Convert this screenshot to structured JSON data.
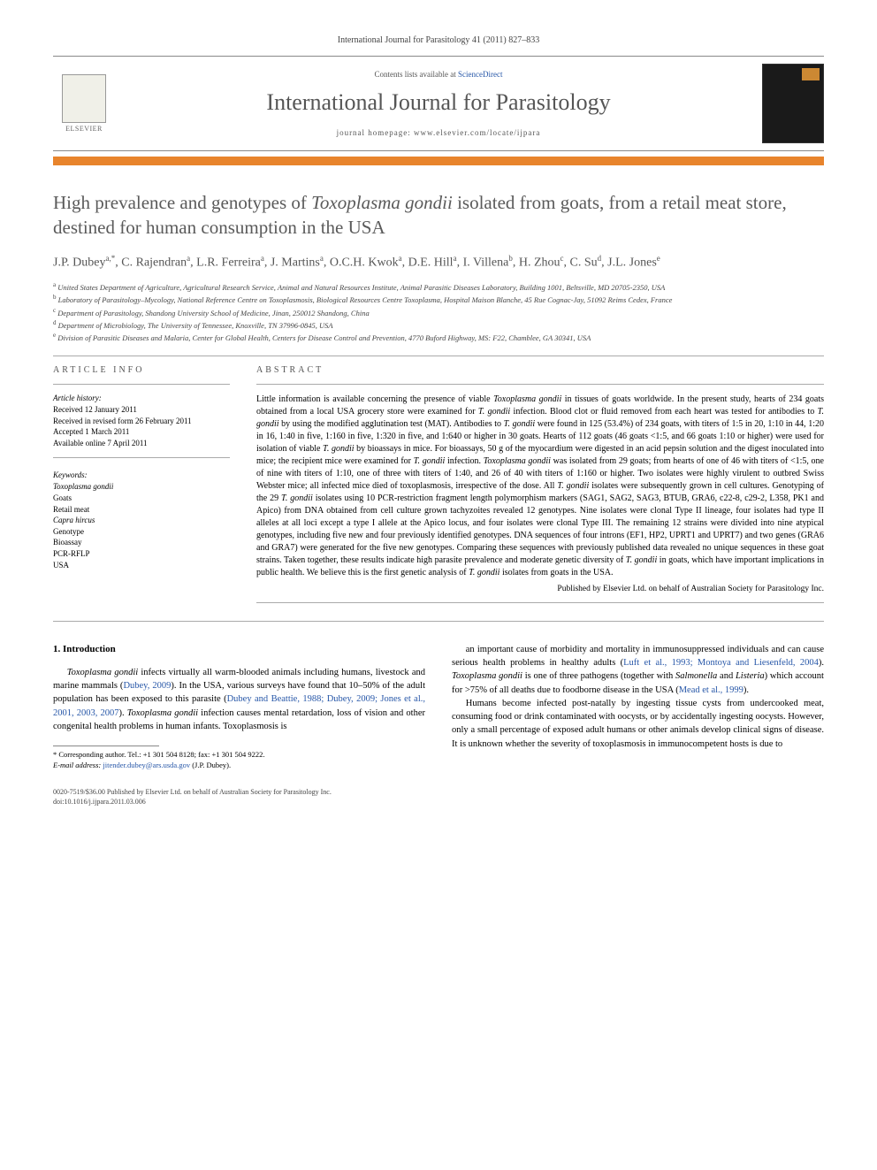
{
  "journal_ref": "International Journal for Parasitology 41 (2011) 827–833",
  "header": {
    "contents_prefix": "Contents lists available at ",
    "contents_link": "ScienceDirect",
    "journal_name": "International Journal for Parasitology",
    "homepage_prefix": "journal homepage: ",
    "homepage_url": "www.elsevier.com/locate/ijpara",
    "elsevier_label": "ELSEVIER"
  },
  "title_parts": {
    "p1": "High prevalence and genotypes of ",
    "ital": "Toxoplasma gondii",
    "p2": " isolated from goats, from a retail meat store, destined for human consumption in the USA"
  },
  "authors_html": "J.P. Dubey<sup>a,*</sup>, C. Rajendran<sup>a</sup>, L.R. Ferreira<sup>a</sup>, J. Martins<sup>a</sup>, O.C.H. Kwok<sup>a</sup>, D.E. Hill<sup>a</sup>, I. Villena<sup>b</sup>, H. Zhou<sup>c</sup>, C. Su<sup>d</sup>, J.L. Jones<sup>e</sup>",
  "affiliations": [
    "<sup>a</sup> United States Department of Agriculture, Agricultural Research Service, Animal and Natural Resources Institute, Animal Parasitic Diseases Laboratory, Building 1001, Beltsville, MD 20705-2350, USA",
    "<sup>b</sup> Laboratory of Parasitology–Mycology, National Reference Centre on Toxoplasmosis, Biological Resources Centre Toxoplasma, Hospital Maison Blanche, 45 Rue Cognac-Jay, 51092 Reims Cedex, France",
    "<sup>c</sup> Department of Parasitology, Shandong University School of Medicine, Jinan, 250012 Shandong, China",
    "<sup>d</sup> Department of Microbiology, The University of Tennessee, Knoxville, TN 37996-0845, USA",
    "<sup>e</sup> Division of Parasitic Diseases and Malaria, Center for Global Health, Centers for Disease Control and Prevention, 4770 Buford Highway, MS: F22, Chamblee, GA 30341, USA"
  ],
  "article_info": {
    "head": "ARTICLE INFO",
    "history_label": "Article history:",
    "history": [
      "Received 12 January 2011",
      "Received in revised form 26 February 2011",
      "Accepted 1 March 2011",
      "Available online 7 April 2011"
    ],
    "keywords_label": "Keywords:",
    "keywords": [
      {
        "text": "Toxoplasma gondii",
        "ital": true
      },
      {
        "text": "Goats",
        "ital": false
      },
      {
        "text": "Retail meat",
        "ital": false
      },
      {
        "text": "Capra hircus",
        "ital": true
      },
      {
        "text": "Genotype",
        "ital": false
      },
      {
        "text": "Bioassay",
        "ital": false
      },
      {
        "text": "PCR-RFLP",
        "ital": false
      },
      {
        "text": "USA",
        "ital": false
      }
    ]
  },
  "abstract": {
    "head": "ABSTRACT",
    "text_html": "Little information is available concerning the presence of viable <span class=\"ital\">Toxoplasma gondii</span> in tissues of goats worldwide. In the present study, hearts of 234 goats obtained from a local USA grocery store were examined for <span class=\"ital\">T. gondii</span> infection. Blood clot or fluid removed from each heart was tested for antibodies to <span class=\"ital\">T. gondii</span> by using the modified agglutination test (MAT). Antibodies to <span class=\"ital\">T. gondii</span> were found in 125 (53.4%) of 234 goats, with titers of 1:5 in 20, 1:10 in 44, 1:20 in 16, 1:40 in five, 1:160 in five, 1:320 in five, and 1:640 or higher in 30 goats. Hearts of 112 goats (46 goats <1:5, and 66 goats 1:10 or higher) were used for isolation of viable <span class=\"ital\">T. gondii</span> by bioassays in mice. For bioassays, 50 g of the myocardium were digested in an acid pepsin solution and the digest inoculated into mice; the recipient mice were examined for <span class=\"ital\">T. gondii</span> infection. <span class=\"ital\">Toxoplasma gondii</span> was isolated from 29 goats; from hearts of one of 46 with titers of <1:5, one of nine with titers of 1:10, one of three with titers of 1:40, and 26 of 40 with titers of 1:160 or higher. Two isolates were highly virulent to outbred Swiss Webster mice; all infected mice died of toxoplasmosis, irrespective of the dose. All <span class=\"ital\">T. gondii</span> isolates were subsequently grown in cell cultures. Genotyping of the 29 <span class=\"ital\">T. gondii</span> isolates using 10 PCR-restriction fragment length polymorphism markers (SAG1, SAG2, SAG3, BTUB, GRA6, c22-8, c29-2, L358, PK1 and Apico) from DNA obtained from cell culture grown tachyzoites revealed 12 genotypes. Nine isolates were clonal Type II lineage, four isolates had type II alleles at all loci except a type I allele at the Apico locus, and four isolates were clonal Type III. The remaining 12 strains were divided into nine atypical genotypes, including five new and four previously identified genotypes. DNA sequences of four introns (EF1, HP2, UPRT1 and UPRT7) and two genes (GRA6 and GRA7) were generated for the five new genotypes. Comparing these sequences with previously published data revealed no unique sequences in these goat strains. Taken together, these results indicate high parasite prevalence and moderate genetic diversity of <span class=\"ital\">T. gondii</span> in goats, which have important implications in public health. We believe this is the first genetic analysis of <span class=\"ital\">T. gondii</span> isolates from goats in the USA.",
    "publisher": "Published by Elsevier Ltd. on behalf of Australian Society for Parasitology Inc."
  },
  "body": {
    "section_heading": "1. Introduction",
    "col1_p1_html": "<span class=\"ital\">Toxoplasma gondii</span> infects virtually all warm-blooded animals including humans, livestock and marine mammals (<a href=\"#\">Dubey, 2009</a>). In the USA, various surveys have found that 10–50% of the adult population has been exposed to this parasite (<a href=\"#\">Dubey and Beattie, 1988; Dubey, 2009; Jones et al., 2001, 2003, 2007</a>). <span class=\"ital\">Toxoplasma gondii</span> infection causes mental retardation, loss of vision and other congenital health problems in human infants. Toxoplasmosis is",
    "col2_p1_html": "an important cause of morbidity and mortality in immunosuppressed individuals and can cause serious health problems in healthy adults (<a href=\"#\">Luft et al., 1993; Montoya and Liesenfeld, 2004</a>). <span class=\"ital\">Toxoplasma gondii</span> is one of three pathogens (together with <span class=\"ital\">Salmonella</span> and <span class=\"ital\">Listeria</span>) which account for >75% of all deaths due to foodborne disease in the USA (<a href=\"#\">Mead et al., 1999</a>).",
    "col2_p2_html": "Humans become infected post-natally by ingesting tissue cysts from undercooked meat, consuming food or drink contaminated with oocysts, or by accidentally ingesting oocysts. However, only a small percentage of exposed adult humans or other animals develop clinical signs of disease. It is unknown whether the severity of toxoplasmosis in immunocompetent hosts is due to"
  },
  "footnote": {
    "corr_label": "* Corresponding author.",
    "tel": " Tel.: +1 301 504 8128; fax: +1 301 504 9222.",
    "email_label": "E-mail address: ",
    "email": "jitender.dubey@ars.usda.gov",
    "email_who": " (J.P. Dubey)."
  },
  "footer": {
    "line1": "0020-7519/$36.00 Published by Elsevier Ltd. on behalf of Australian Society for Parasitology Inc.",
    "line2": "doi:10.1016/j.ijpara.2011.03.006"
  },
  "colors": {
    "orange_bar": "#e8842c",
    "link": "#2757a8",
    "text_gray": "#555555"
  }
}
